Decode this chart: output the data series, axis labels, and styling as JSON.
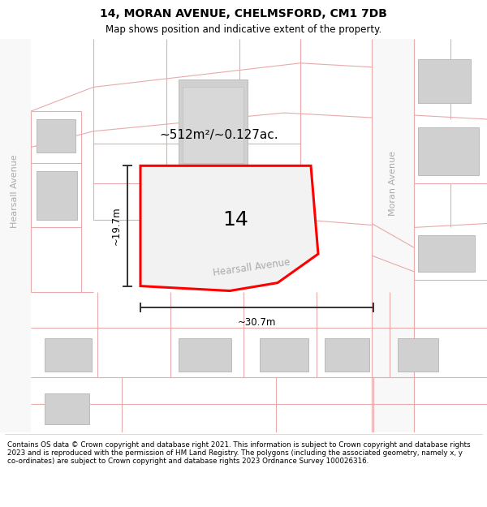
{
  "title": "14, MORAN AVENUE, CHELMSFORD, CM1 7DB",
  "subtitle": "Map shows position and indicative extent of the property.",
  "footer": "Contains OS data © Crown copyright and database right 2021. This information is subject to Crown copyright and database rights 2023 and is reproduced with the permission of HM Land Registry. The polygons (including the associated geometry, namely x, y co-ordinates) are subject to Crown copyright and database rights 2023 Ordnance Survey 100026316.",
  "area_label": "~512m²/~0.127ac.",
  "property_number": "14",
  "dim_height": "~19.7m",
  "dim_width": "~30.7m",
  "map_bg": "#ffffff",
  "building_fill": "#d0d0d0",
  "building_edge": "#bbbbbb",
  "plot_fill": "#f2f2f2",
  "plot_edge": "#ff0000",
  "street_line_color": "#e8aaaa",
  "dim_line_color": "#333333",
  "street_label_color": "#aaaaaa",
  "title_fontsize": 10,
  "subtitle_fontsize": 8.5,
  "footer_fontsize": 6.3,
  "area_label_fontsize": 11,
  "property_num_fontsize": 18,
  "dim_fontsize": 8.5,
  "street_label_fontsize": 8
}
